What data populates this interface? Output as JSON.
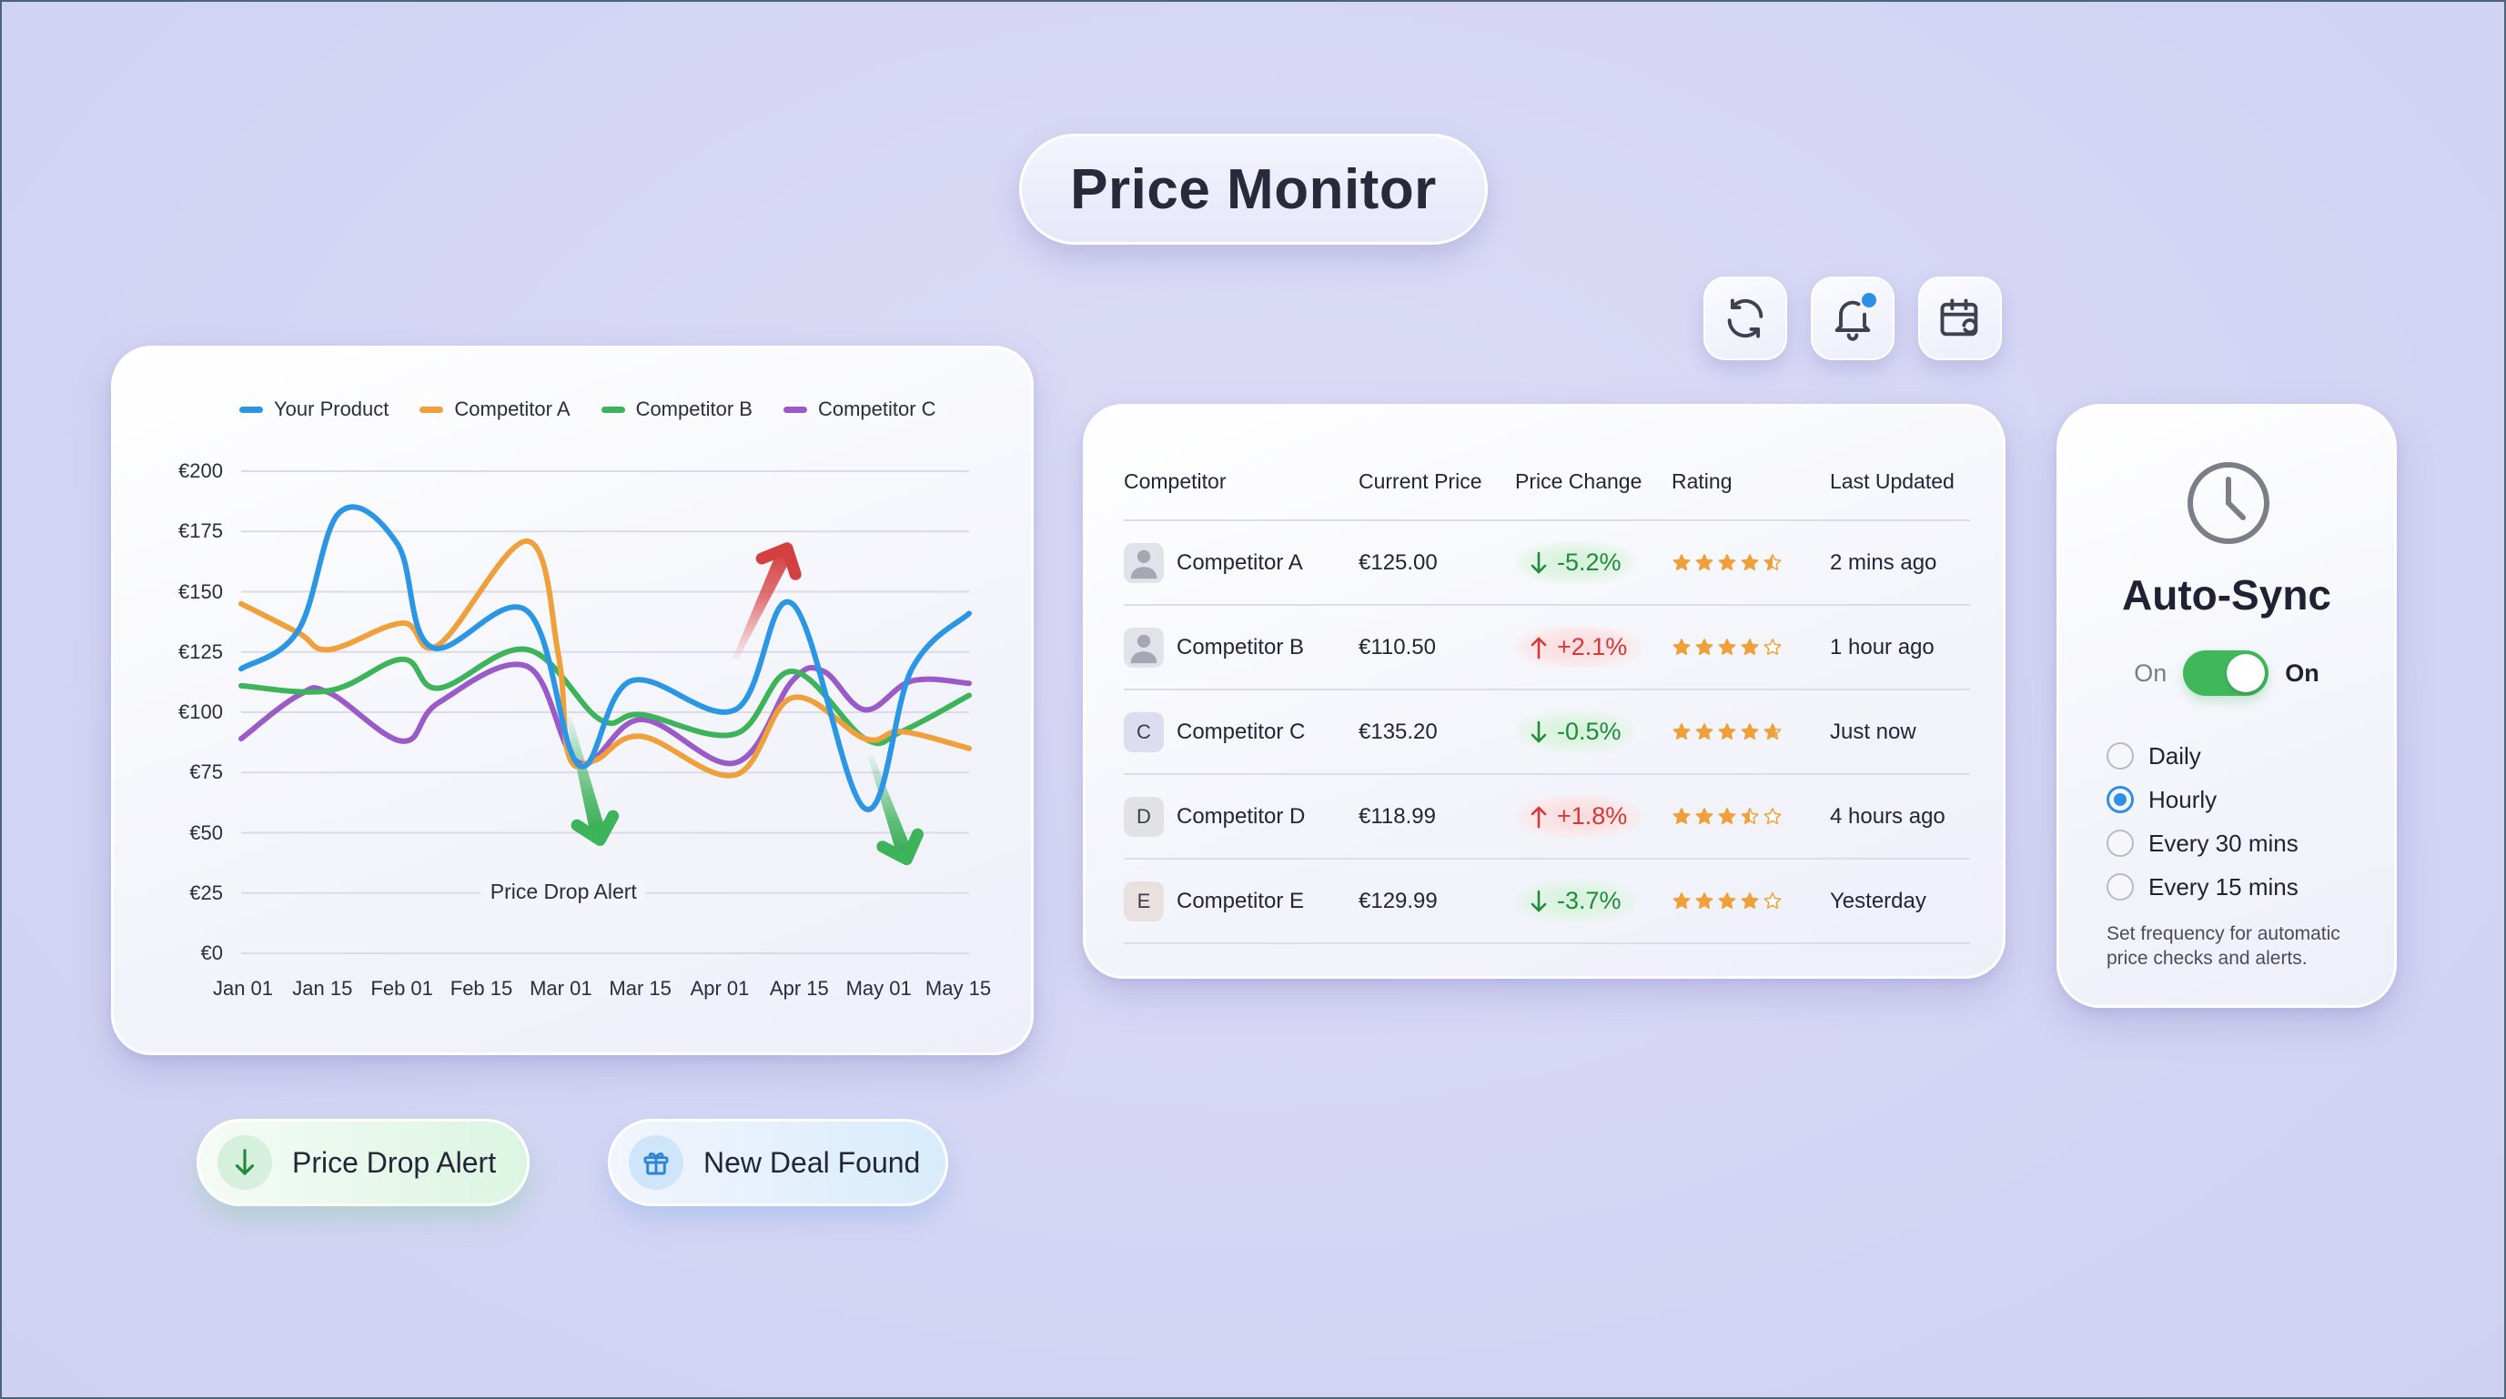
{
  "header": {
    "title": "Price Monitor"
  },
  "toolbar": {
    "buttons": [
      {
        "name": "refresh",
        "icon": "refresh-icon"
      },
      {
        "name": "notifications",
        "icon": "bell-icon",
        "badge": true,
        "badge_color": "#2d8fe6"
      },
      {
        "name": "scheduled-sync",
        "icon": "calendar-sync-icon"
      }
    ]
  },
  "colors": {
    "your_product": "#2b96e3",
    "competitor_a": "#f0a03a",
    "competitor_b": "#3db35a",
    "competitor_c": "#9a5ac8",
    "up": "#d43a3a",
    "down": "#23893b",
    "star": "#f0a03a",
    "accent": "#2d8fe6",
    "toggle_on": "#3fb85c"
  },
  "chart_data": {
    "type": "line",
    "title": "",
    "xlabel": "",
    "ylabel": "",
    "ylim": [
      0,
      200
    ],
    "yticks": [
      "€0",
      "€25",
      "€50",
      "€75",
      "€100",
      "€125",
      "€150",
      "€175",
      "€200"
    ],
    "categories": [
      "Jan 01",
      "Jan 15",
      "Feb 01",
      "Feb 15",
      "Mar 01",
      "Mar 15",
      "Apr 01",
      "Apr 15",
      "May 01",
      "May 15"
    ],
    "grid": true,
    "legend_position": "top",
    "series": [
      {
        "name": "Your Product",
        "color": "#2b96e3",
        "points": [
          [
            0,
            118
          ],
          [
            0.55,
            134
          ],
          [
            0.95,
            183
          ],
          [
            1.5,
            170
          ],
          [
            1.83,
            127
          ],
          [
            2.75,
            142
          ],
          [
            3.25,
            78
          ],
          [
            3.75,
            113
          ],
          [
            4.75,
            101
          ],
          [
            5.3,
            145
          ],
          [
            6.0,
            60
          ],
          [
            6.45,
            118
          ],
          [
            7.0,
            141
          ]
        ]
      },
      {
        "name": "Competitor A",
        "color": "#f0a03a",
        "points": [
          [
            0,
            145
          ],
          [
            0.55,
            133
          ],
          [
            0.85,
            126
          ],
          [
            1.55,
            137
          ],
          [
            1.9,
            128
          ],
          [
            2.75,
            171
          ],
          [
            3.05,
            124
          ],
          [
            3.15,
            82
          ],
          [
            3.4,
            80
          ],
          [
            3.85,
            90
          ],
          [
            4.75,
            74
          ],
          [
            5.3,
            106
          ],
          [
            6.0,
            89
          ],
          [
            6.35,
            92
          ],
          [
            7.0,
            85
          ]
        ]
      },
      {
        "name": "Competitor B",
        "color": "#3db35a",
        "points": [
          [
            0,
            111
          ],
          [
            0.85,
            109
          ],
          [
            1.55,
            122
          ],
          [
            1.9,
            110
          ],
          [
            2.75,
            126
          ],
          [
            3.45,
            97
          ],
          [
            3.85,
            99
          ],
          [
            4.75,
            91
          ],
          [
            5.3,
            117
          ],
          [
            6.0,
            89
          ],
          [
            6.35,
            92
          ],
          [
            7.0,
            107
          ]
        ]
      },
      {
        "name": "Competitor C",
        "color": "#9a5ac8",
        "points": [
          [
            0,
            89
          ],
          [
            0.55,
            107
          ],
          [
            0.85,
            108
          ],
          [
            1.55,
            88
          ],
          [
            1.9,
            104
          ],
          [
            2.75,
            119
          ],
          [
            3.25,
            79
          ],
          [
            3.85,
            97
          ],
          [
            4.75,
            79
          ],
          [
            5.3,
            113
          ],
          [
            5.6,
            117
          ],
          [
            6.0,
            101
          ],
          [
            6.45,
            113
          ],
          [
            7.0,
            112
          ]
        ]
      }
    ],
    "annotations": [
      {
        "text": "Price Drop Alert",
        "type": "label",
        "x_cat": "Mar 01",
        "y": 25
      },
      {
        "type": "arrow-down",
        "color": "#3db35a",
        "from": [
          3.15,
          98
        ],
        "to": [
          3.45,
          47
        ]
      },
      {
        "type": "arrow-down",
        "color": "#3db35a",
        "from": [
          6.05,
          82
        ],
        "to": [
          6.4,
          39
        ]
      },
      {
        "type": "arrow-up",
        "color": "#d44040",
        "from": [
          4.75,
          122
        ],
        "to": [
          5.25,
          168
        ]
      }
    ]
  },
  "chart": {
    "legend": [
      "Your Product",
      "Competitor A",
      "Competitor B",
      "Competitor C"
    ],
    "y_labels": [
      "€200",
      "€175",
      "€150",
      "€125",
      "€100",
      "€75",
      "€50",
      "€25",
      "€0"
    ],
    "x_labels": [
      "Jan 01",
      "Jan 15",
      "Feb 01",
      "Feb 15",
      "Mar 01",
      "Mar 15",
      "Apr 01",
      "Apr 15",
      "May 01",
      "May 15"
    ],
    "annotation": "Price Drop Alert"
  },
  "table": {
    "headers": [
      "Competitor",
      "Current Price",
      "Price Change",
      "Rating",
      "Last Updated"
    ],
    "rows": [
      {
        "avatar": "person",
        "name": "Competitor A",
        "price": "€125.00",
        "change": "-5.2%",
        "direction": "down",
        "rating": 4.5,
        "updated": "2 mins ago"
      },
      {
        "avatar": "person",
        "name": "Competitor B",
        "price": "€110.50",
        "change": "+2.1%",
        "direction": "up",
        "rating": 4.0,
        "updated": "1 hour ago"
      },
      {
        "avatar": "C",
        "name": "Competitor C",
        "price": "€135.20",
        "change": "-0.5%",
        "direction": "down",
        "rating": 4.7,
        "updated": "Just now"
      },
      {
        "avatar": "D",
        "name": "Competitor D",
        "price": "€118.99",
        "change": "+1.8%",
        "direction": "up",
        "rating": 3.5,
        "updated": "4 hours ago"
      },
      {
        "avatar": "E",
        "name": "Competitor E",
        "price": "€129.99",
        "change": "-3.7%",
        "direction": "down",
        "rating": 4.0,
        "updated": "Yesterday"
      }
    ]
  },
  "auto_sync": {
    "title": "Auto-Sync",
    "toggle_left_label": "On",
    "toggle_right_label": "On",
    "enabled": true,
    "options": [
      "Daily",
      "Hourly",
      "Every 30 mins",
      "Every 15 mins"
    ],
    "selected": "Hourly",
    "help_text": "Set frequency for automatic price checks and alerts."
  },
  "alerts": [
    {
      "label": "Price Drop Alert",
      "icon": "arrow-down-icon",
      "tone": "green"
    },
    {
      "label": "New Deal Found",
      "icon": "gift-icon",
      "tone": "blue"
    }
  ]
}
